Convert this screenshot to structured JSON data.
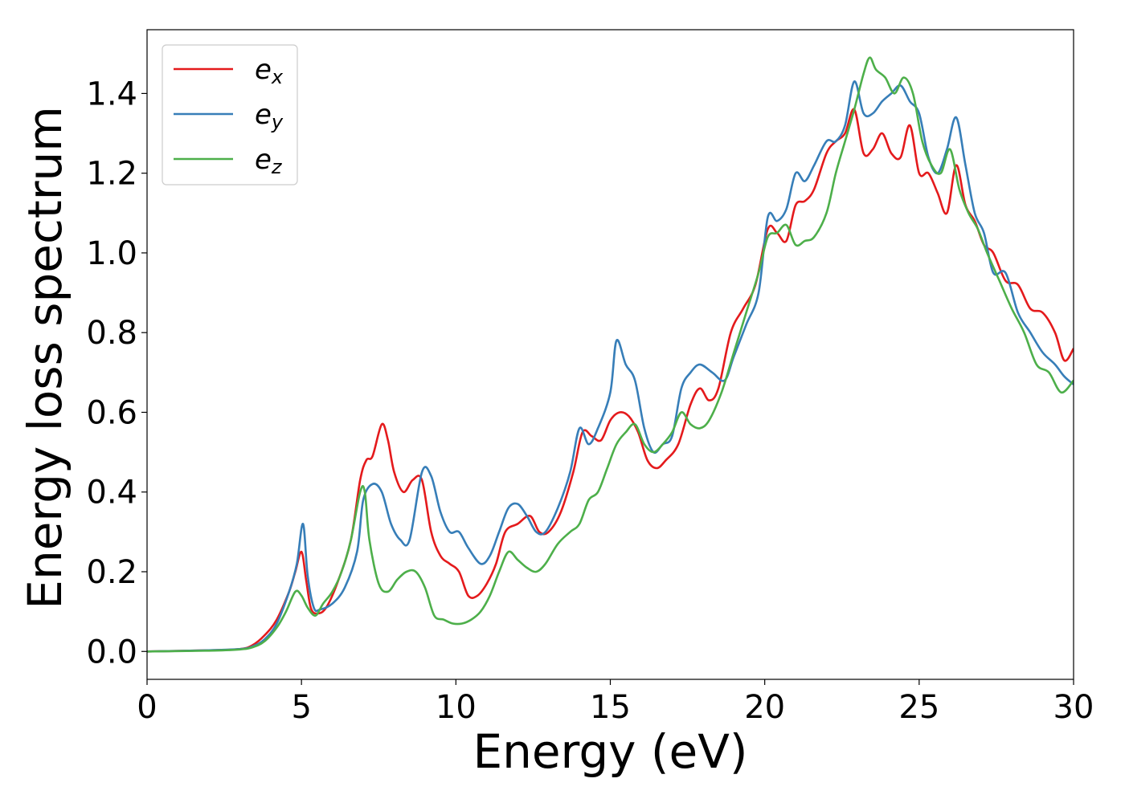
{
  "chart_data": {
    "type": "line",
    "title": "",
    "xlabel": "Energy (eV)",
    "ylabel": "Energy loss spectrum",
    "xlim": [
      0,
      30
    ],
    "ylim": [
      -0.07,
      1.56
    ],
    "xticks": [
      0,
      5,
      10,
      15,
      20,
      25,
      30
    ],
    "yticks": [
      0.0,
      0.2,
      0.4,
      0.6,
      0.8,
      1.0,
      1.2,
      1.4
    ],
    "xtick_labels": [
      "0",
      "5",
      "10",
      "15",
      "20",
      "25",
      "30"
    ],
    "ytick_labels": [
      "0.0",
      "0.2",
      "0.4",
      "0.6",
      "0.8",
      "1.0",
      "1.2",
      "1.4"
    ],
    "grid": false,
    "legend_position": "top-left",
    "series": [
      {
        "name": "e_x",
        "legend_main": "e",
        "legend_sub": "x",
        "color": "#e41a1c",
        "x": [
          0,
          2,
          3,
          3.4,
          3.8,
          4.2,
          4.6,
          4.8,
          5.0,
          5.15,
          5.3,
          5.5,
          5.8,
          6.2,
          6.6,
          6.9,
          7.1,
          7.3,
          7.6,
          7.8,
          8.0,
          8.3,
          8.6,
          8.9,
          9.2,
          9.5,
          9.8,
          10.1,
          10.4,
          10.7,
          11.0,
          11.3,
          11.6,
          12.0,
          12.4,
          12.7,
          13.0,
          13.4,
          13.8,
          14.1,
          14.4,
          14.7,
          15.0,
          15.3,
          15.6,
          15.9,
          16.2,
          16.5,
          16.8,
          17.2,
          17.6,
          17.9,
          18.2,
          18.5,
          18.9,
          19.3,
          19.7,
          20.1,
          20.4,
          20.7,
          21.0,
          21.3,
          21.6,
          22.0,
          22.3,
          22.6,
          22.9,
          23.2,
          23.5,
          23.8,
          24.1,
          24.4,
          24.7,
          25.0,
          25.3,
          25.6,
          25.9,
          26.2,
          26.5,
          26.8,
          27.1,
          27.4,
          27.8,
          28.2,
          28.6,
          29.0,
          29.4,
          29.7,
          30.0
        ],
        "y": [
          0.0,
          0.003,
          0.006,
          0.015,
          0.04,
          0.08,
          0.15,
          0.2,
          0.25,
          0.18,
          0.11,
          0.095,
          0.11,
          0.18,
          0.28,
          0.43,
          0.48,
          0.49,
          0.57,
          0.53,
          0.45,
          0.4,
          0.43,
          0.43,
          0.3,
          0.24,
          0.22,
          0.2,
          0.14,
          0.14,
          0.17,
          0.22,
          0.3,
          0.32,
          0.34,
          0.3,
          0.3,
          0.35,
          0.45,
          0.55,
          0.54,
          0.53,
          0.58,
          0.6,
          0.59,
          0.55,
          0.48,
          0.46,
          0.48,
          0.52,
          0.62,
          0.66,
          0.63,
          0.66,
          0.8,
          0.86,
          0.92,
          1.06,
          1.05,
          1.03,
          1.12,
          1.13,
          1.16,
          1.25,
          1.28,
          1.3,
          1.36,
          1.25,
          1.26,
          1.3,
          1.25,
          1.24,
          1.32,
          1.2,
          1.2,
          1.15,
          1.1,
          1.22,
          1.12,
          1.08,
          1.02,
          1.0,
          0.93,
          0.92,
          0.86,
          0.85,
          0.8,
          0.73,
          0.76
        ]
      },
      {
        "name": "e_y",
        "legend_main": "e",
        "legend_sub": "y",
        "color": "#377eb8",
        "x": [
          0,
          2,
          3,
          3.4,
          3.8,
          4.2,
          4.6,
          4.85,
          5.05,
          5.2,
          5.4,
          5.6,
          6.0,
          6.4,
          6.8,
          7.0,
          7.3,
          7.6,
          7.9,
          8.2,
          8.5,
          8.9,
          9.2,
          9.5,
          9.8,
          10.1,
          10.4,
          10.8,
          11.1,
          11.4,
          11.7,
          12.0,
          12.3,
          12.6,
          12.9,
          13.3,
          13.7,
          14.0,
          14.3,
          14.6,
          15.0,
          15.2,
          15.5,
          15.8,
          16.1,
          16.4,
          16.7,
          17.0,
          17.3,
          17.6,
          17.9,
          18.3,
          18.7,
          19.0,
          19.4,
          19.8,
          20.1,
          20.4,
          20.7,
          21.0,
          21.3,
          21.6,
          22.0,
          22.3,
          22.6,
          22.9,
          23.2,
          23.5,
          23.8,
          24.1,
          24.4,
          24.7,
          25.0,
          25.3,
          25.6,
          25.9,
          26.2,
          26.5,
          26.8,
          27.1,
          27.4,
          27.8,
          28.2,
          28.6,
          29.0,
          29.4,
          29.7,
          30.0
        ],
        "y": [
          0.0,
          0.003,
          0.006,
          0.012,
          0.03,
          0.07,
          0.15,
          0.22,
          0.32,
          0.19,
          0.11,
          0.105,
          0.12,
          0.16,
          0.25,
          0.38,
          0.42,
          0.4,
          0.32,
          0.28,
          0.28,
          0.45,
          0.44,
          0.35,
          0.3,
          0.3,
          0.26,
          0.22,
          0.24,
          0.3,
          0.36,
          0.37,
          0.34,
          0.3,
          0.3,
          0.36,
          0.45,
          0.56,
          0.52,
          0.56,
          0.65,
          0.78,
          0.72,
          0.68,
          0.56,
          0.5,
          0.52,
          0.54,
          0.66,
          0.7,
          0.72,
          0.7,
          0.68,
          0.74,
          0.82,
          0.9,
          1.09,
          1.08,
          1.11,
          1.2,
          1.18,
          1.22,
          1.28,
          1.28,
          1.32,
          1.43,
          1.35,
          1.35,
          1.38,
          1.4,
          1.42,
          1.38,
          1.35,
          1.24,
          1.2,
          1.26,
          1.34,
          1.22,
          1.1,
          1.05,
          0.95,
          0.95,
          0.85,
          0.8,
          0.75,
          0.72,
          0.69,
          0.67
        ]
      },
      {
        "name": "e_z",
        "legend_main": "e",
        "legend_sub": "z",
        "color": "#4daf4a",
        "x": [
          0,
          2,
          3,
          3.4,
          3.8,
          4.2,
          4.5,
          4.8,
          5.0,
          5.2,
          5.45,
          5.7,
          6.0,
          6.3,
          6.6,
          6.9,
          7.05,
          7.2,
          7.5,
          7.8,
          8.1,
          8.4,
          8.7,
          9.0,
          9.3,
          9.6,
          9.9,
          10.2,
          10.5,
          10.8,
          11.1,
          11.4,
          11.7,
          12.0,
          12.3,
          12.6,
          12.9,
          13.3,
          13.7,
          14.0,
          14.3,
          14.6,
          14.9,
          15.2,
          15.5,
          15.8,
          16.1,
          16.4,
          16.7,
          17.0,
          17.3,
          17.6,
          17.9,
          18.2,
          18.6,
          19.0,
          19.4,
          19.8,
          20.1,
          20.4,
          20.7,
          21.0,
          21.3,
          21.6,
          22.0,
          22.3,
          22.6,
          22.9,
          23.2,
          23.4,
          23.6,
          23.9,
          24.2,
          24.5,
          24.8,
          25.1,
          25.4,
          25.7,
          26.0,
          26.3,
          26.6,
          26.9,
          27.2,
          27.6,
          28.0,
          28.4,
          28.8,
          29.2,
          29.6,
          30.0
        ],
        "y": [
          0.0,
          0.002,
          0.005,
          0.01,
          0.025,
          0.06,
          0.1,
          0.15,
          0.14,
          0.11,
          0.09,
          0.12,
          0.15,
          0.2,
          0.28,
          0.4,
          0.4,
          0.28,
          0.17,
          0.15,
          0.18,
          0.2,
          0.2,
          0.16,
          0.09,
          0.08,
          0.07,
          0.07,
          0.08,
          0.1,
          0.14,
          0.2,
          0.25,
          0.23,
          0.21,
          0.2,
          0.22,
          0.27,
          0.3,
          0.32,
          0.38,
          0.4,
          0.46,
          0.52,
          0.55,
          0.57,
          0.52,
          0.5,
          0.52,
          0.55,
          0.6,
          0.57,
          0.56,
          0.58,
          0.65,
          0.75,
          0.85,
          0.95,
          1.04,
          1.05,
          1.07,
          1.02,
          1.03,
          1.04,
          1.1,
          1.2,
          1.28,
          1.36,
          1.45,
          1.49,
          1.46,
          1.44,
          1.4,
          1.44,
          1.4,
          1.28,
          1.22,
          1.2,
          1.26,
          1.16,
          1.1,
          1.06,
          1.0,
          0.93,
          0.86,
          0.8,
          0.72,
          0.7,
          0.65,
          0.68
        ]
      }
    ]
  }
}
